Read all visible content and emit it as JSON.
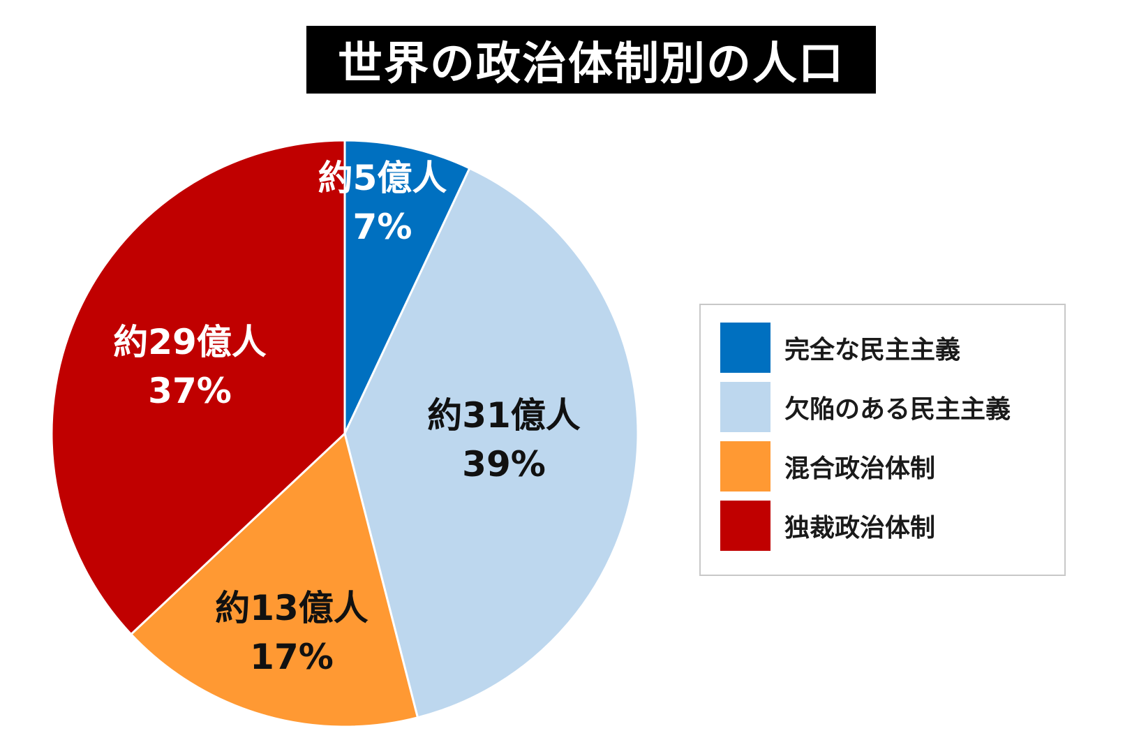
{
  "chart_data": {
    "type": "pie",
    "title": "世界の政治体制別の人口",
    "start_angle": "top, clockwise",
    "legend_placement": "right",
    "slices": [
      {
        "name": "完全な民主主義",
        "percent": 7,
        "label": "約5億人",
        "pct_label": "7%",
        "color": "#0070C0",
        "text_color": "#FFFFFF"
      },
      {
        "name": "欠陥のある民主主義",
        "percent": 39,
        "label": "約31億人",
        "pct_label": "39%",
        "color": "#BDD7EE",
        "text_color": "#111111"
      },
      {
        "name": "混合政治体制",
        "percent": 17,
        "label": "約13億人",
        "pct_label": "17%",
        "color": "#FF9933",
        "text_color": "#111111"
      },
      {
        "name": "独裁政治体制",
        "percent": 37,
        "label": "約29億人",
        "pct_label": "37%",
        "color": "#C00000",
        "text_color": "#FFFFFF"
      }
    ]
  }
}
